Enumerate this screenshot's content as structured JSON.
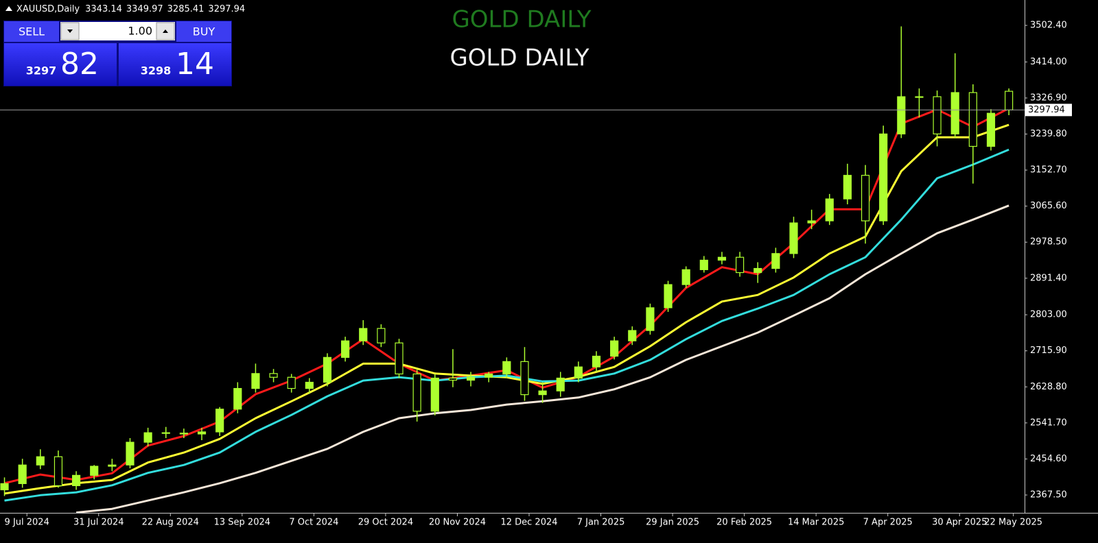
{
  "chart_data": {
    "type": "candlestick",
    "symbol": "XAUUSD,Daily",
    "title": "GOLD DAILY",
    "subtitle": "GOLD DAILY",
    "title_color": "#1f7a1f",
    "subtitle_color": "#f2f2f2",
    "up_color": "#adff2f",
    "down_color": "#adff2f",
    "ylim": [
      2324.4,
      3563.7
    ],
    "yticks": [
      {
        "value": 2367.5,
        "label": "2367.50"
      },
      {
        "value": 2454.6,
        "label": "2454.60"
      },
      {
        "value": 2541.7,
        "label": "2541.70"
      },
      {
        "value": 2628.8,
        "label": "2628.80"
      },
      {
        "value": 2715.9,
        "label": "2715.90"
      },
      {
        "value": 2803,
        "label": "2803.00"
      },
      {
        "value": 2891.4,
        "label": "2891.40"
      },
      {
        "value": 2978.5,
        "label": "2978.50"
      },
      {
        "value": 3065.6,
        "label": "3065.60"
      },
      {
        "value": 3152.7,
        "label": "3152.70"
      },
      {
        "value": 3239.8,
        "label": "3239.80"
      },
      {
        "value": 3326.9,
        "label": "3326.90"
      },
      {
        "value": 3414,
        "label": "3414.00"
      },
      {
        "value": 3502.4,
        "label": "3502.40"
      }
    ],
    "xlim": [
      -1,
      227.5
    ],
    "xticks": [
      {
        "value": 5,
        "label": "9 Jul 2024"
      },
      {
        "value": 21,
        "label": "31 Jul 2024"
      },
      {
        "value": 37,
        "label": "22 Aug 2024"
      },
      {
        "value": 53,
        "label": "13 Sep 2024"
      },
      {
        "value": 69,
        "label": "7 Oct 2024"
      },
      {
        "value": 85,
        "label": "29 Oct 2024"
      },
      {
        "value": 101,
        "label": "20 Nov 2024"
      },
      {
        "value": 117,
        "label": "12 Dec 2024"
      },
      {
        "value": 133,
        "label": "7 Jan 2025"
      },
      {
        "value": 149,
        "label": "29 Jan 2025"
      },
      {
        "value": 165,
        "label": "20 Feb 2025"
      },
      {
        "value": 181,
        "label": "14 Mar 2025"
      },
      {
        "value": 197,
        "label": "7 Apr 2025"
      },
      {
        "value": 213,
        "label": "30 Apr 2025"
      },
      {
        "value": 225,
        "label": "22 May 2025"
      }
    ],
    "x": [
      0,
      4,
      8,
      12,
      16,
      20,
      24,
      28,
      32,
      36,
      40,
      44,
      48,
      52,
      56,
      60,
      64,
      68,
      72,
      76,
      80,
      84,
      88,
      92,
      96,
      100,
      104,
      108,
      112,
      116,
      120,
      124,
      128,
      132,
      136,
      140,
      144,
      148,
      152,
      156,
      160,
      164,
      168,
      172,
      176,
      180,
      184,
      188,
      192,
      196,
      200,
      204,
      208,
      212,
      216,
      220,
      224
    ],
    "open": [
      2380,
      2395,
      2440,
      2460,
      2390,
      2415,
      2437,
      2440,
      2495,
      2518,
      2517,
      2515,
      2520,
      2575,
      2625,
      2661,
      2652,
      2625,
      2640,
      2700,
      2740,
      2770,
      2735,
      2660,
      2570,
      2650,
      2645,
      2652,
      2660,
      2690,
      2610,
      2619,
      2650,
      2677,
      2703,
      2740,
      2765,
      2820,
      2876,
      2912,
      2935,
      2942,
      2905,
      2915,
      2951,
      3025,
      3030,
      3083,
      3140,
      3030,
      3240,
      3330,
      3330,
      3240,
      3340,
      3210,
      3343.14
    ],
    "high": [
      2410,
      2455,
      2478,
      2475,
      2425,
      2440,
      2455,
      2505,
      2530,
      2532,
      2528,
      2530,
      2580,
      2640,
      2685,
      2672,
      2660,
      2650,
      2710,
      2750,
      2790,
      2780,
      2745,
      2670,
      2660,
      2720,
      2665,
      2665,
      2700,
      2725,
      2640,
      2665,
      2690,
      2715,
      2750,
      2775,
      2830,
      2885,
      2920,
      2945,
      2955,
      2955,
      2930,
      2965,
      3040,
      3057,
      3095,
      3168,
      3165,
      3260,
      3500,
      3350,
      3345,
      3435,
      3360,
      3300,
      3349.97
    ],
    "low": [
      2365,
      2385,
      2430,
      2385,
      2380,
      2405,
      2425,
      2432,
      2485,
      2505,
      2505,
      2500,
      2510,
      2565,
      2615,
      2640,
      2615,
      2612,
      2630,
      2690,
      2730,
      2725,
      2650,
      2545,
      2560,
      2628,
      2630,
      2640,
      2650,
      2595,
      2590,
      2605,
      2640,
      2665,
      2695,
      2730,
      2755,
      2810,
      2868,
      2905,
      2925,
      2895,
      2880,
      2905,
      2940,
      3010,
      3020,
      3070,
      2975,
      3020,
      3230,
      3280,
      3210,
      3230,
      3120,
      3200,
      3285.41
    ],
    "close": [
      2395,
      2440,
      2460,
      2390,
      2415,
      2437,
      2440,
      2495,
      2518,
      2517,
      2515,
      2520,
      2575,
      2625,
      2661,
      2652,
      2625,
      2640,
      2700,
      2740,
      2770,
      2735,
      2660,
      2570,
      2650,
      2645,
      2652,
      2660,
      2690,
      2610,
      2619,
      2650,
      2677,
      2703,
      2740,
      2765,
      2820,
      2876,
      2912,
      2935,
      2942,
      2905,
      2915,
      2951,
      3025,
      3030,
      3083,
      3140,
      3030,
      3240,
      3330,
      3330,
      3240,
      3340,
      3210,
      3290,
      3297.94
    ],
    "lines": [
      {
        "color": "#ff1a1a",
        "x": [
          0,
          8,
          16,
          24,
          32,
          40,
          48,
          56,
          64,
          72,
          80,
          88,
          96,
          104,
          112,
          120,
          128,
          136,
          144,
          152,
          160,
          168,
          176,
          184,
          192,
          200,
          208,
          216,
          224
        ],
        "values": [
          2396,
          2417,
          2404,
          2420,
          2487,
          2510,
          2545,
          2611,
          2644,
          2685,
          2744,
          2685,
          2644,
          2656,
          2669,
          2627,
          2653,
          2702,
          2777,
          2868,
          2918,
          2901,
          2976,
          3058,
          3058,
          3265,
          3299,
          3257,
          3302
        ]
      },
      {
        "color": "#ffff33",
        "x": [
          0,
          8,
          16,
          24,
          32,
          40,
          48,
          56,
          64,
          72,
          80,
          88,
          96,
          104,
          112,
          120,
          128,
          136,
          144,
          152,
          160,
          168,
          176,
          184,
          192,
          200,
          208,
          216,
          224
        ],
        "values": [
          2371,
          2384,
          2396,
          2404,
          2446,
          2470,
          2503,
          2553,
          2594,
          2636,
          2685,
          2685,
          2661,
          2656,
          2652,
          2636,
          2653,
          2677,
          2727,
          2785,
          2835,
          2851,
          2893,
          2951,
          2992,
          3150,
          3232,
          3232,
          3262
        ]
      },
      {
        "color": "#33dddd",
        "x": [
          0,
          8,
          16,
          24,
          32,
          40,
          48,
          56,
          64,
          72,
          80,
          88,
          96,
          104,
          112,
          120,
          128,
          136,
          144,
          152,
          160,
          168,
          176,
          184,
          192,
          200,
          208,
          216,
          224
        ],
        "values": [
          2354,
          2367,
          2374,
          2391,
          2421,
          2440,
          2470,
          2520,
          2561,
          2606,
          2644,
          2652,
          2644,
          2652,
          2656,
          2642,
          2644,
          2661,
          2694,
          2744,
          2788,
          2818,
          2851,
          2901,
          2942,
          3033,
          3133,
          3166,
          3202
        ]
      },
      {
        "color": "#f5e6d8",
        "x": [
          0,
          8,
          16,
          24,
          32,
          40,
          48,
          56,
          64,
          72,
          80,
          88,
          96,
          104,
          112,
          120,
          128,
          136,
          144,
          152,
          160,
          168,
          176,
          184,
          192,
          200,
          208,
          216,
          224
        ],
        "values": [
          null,
          null,
          2325,
          2334,
          2354,
          2374,
          2396,
          2421,
          2450,
          2479,
          2520,
          2553,
          2565,
          2573,
          2586,
          2594,
          2603,
          2623,
          2652,
          2694,
          2727,
          2760,
          2801,
          2843,
          2901,
          2951,
          3000,
          3033,
          3067
        ]
      }
    ]
  },
  "trade_panel": {
    "sell": "SELL",
    "buy": "BUY",
    "lot": "1.00",
    "bid_big": "3297",
    "bid_small": "82",
    "ask_big": "3298",
    "ask_small": "14"
  }
}
